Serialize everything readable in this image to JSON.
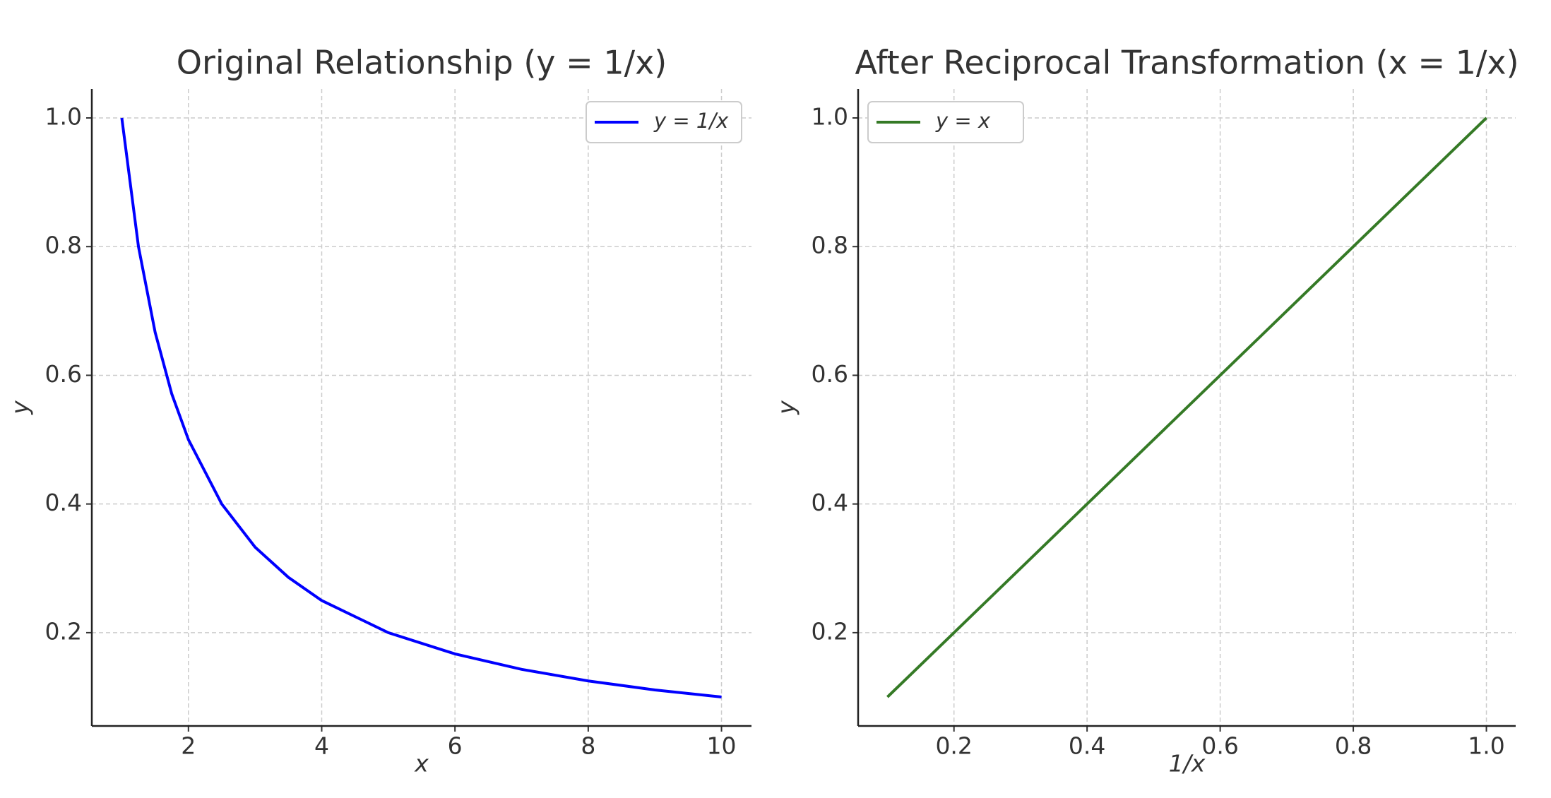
{
  "chart_data": [
    {
      "type": "line",
      "title": "Original Relationship (y = 1/x)",
      "x_label": "x",
      "y_label": "y",
      "x": [
        1,
        1.25,
        1.5,
        1.75,
        2,
        2.5,
        3,
        3.5,
        4,
        5,
        6,
        7,
        8,
        9,
        10
      ],
      "series": [
        {
          "name": "y = 1/x",
          "color": "#0000ff",
          "values": [
            1,
            0.8,
            0.667,
            0.571,
            0.5,
            0.4,
            0.333,
            0.286,
            0.25,
            0.2,
            0.167,
            0.143,
            0.125,
            0.111,
            0.1
          ]
        }
      ],
      "xlim": [
        0.55,
        10.45
      ],
      "ylim": [
        0.055,
        1.045
      ],
      "xticks": [
        2,
        4,
        6,
        8,
        10
      ],
      "yticks": [
        0.2,
        0.4,
        0.6,
        0.8,
        {
          "value": 1,
          "label": "1.0"
        }
      ],
      "grid": true,
      "legend": "upper right"
    },
    {
      "type": "line",
      "title": "After Reciprocal Transformation (x = 1/x)",
      "x_label": "1/x",
      "y_label": "y",
      "x": [
        0.1,
        0.2,
        0.3,
        0.4,
        0.5,
        0.6,
        0.7,
        0.8,
        0.9,
        1
      ],
      "series": [
        {
          "name": "y = x",
          "color": "#357a26",
          "values": [
            0.1,
            0.2,
            0.3,
            0.4,
            0.5,
            0.6,
            0.7,
            0.8,
            0.9,
            1
          ]
        }
      ],
      "xlim": [
        0.056,
        1.044
      ],
      "ylim": [
        0.055,
        1.045
      ],
      "xticks": [
        0.2,
        0.4,
        0.6,
        0.8,
        {
          "value": 1,
          "label": "1.0"
        }
      ],
      "yticks": [
        0.2,
        0.4,
        0.6,
        0.8,
        {
          "value": 1,
          "label": "1.0"
        }
      ],
      "grid": true,
      "legend": "upper left"
    }
  ]
}
